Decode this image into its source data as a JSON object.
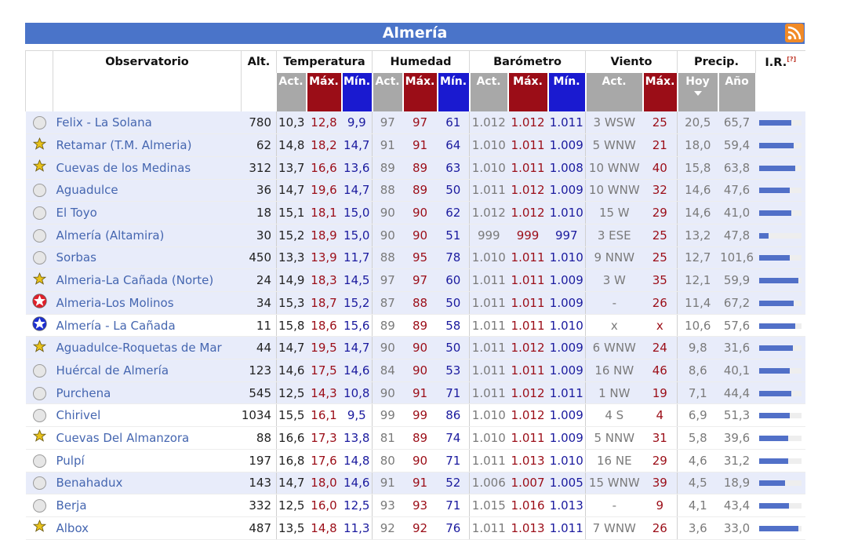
{
  "title": "Almería",
  "columns": {
    "observatorio": "Observatorio",
    "alt": "Alt.",
    "temperatura": "Temperatura",
    "humedad": "Humedad",
    "barometro": "Barómetro",
    "viento": "Viento",
    "precip": "Precip.",
    "ir": "I.R.",
    "ir_note": "[?]",
    "act": "Act.",
    "max": "Máx.",
    "min": "Mín.",
    "hoy": "Hoy",
    "anio": "Año"
  },
  "icons": {
    "rss": "rss-icon",
    "sort": "sort-down-icon",
    "circle": "station-circle-icon",
    "star-yellow": "star-yellow-icon",
    "star-red": "star-red-icon",
    "star-blue": "star-blue-icon"
  },
  "colors": {
    "header": "#4a74c9",
    "act": "#a8a8a8",
    "max": "#9b0d17",
    "min": "#1a1ad0",
    "link": "#4566b0",
    "bar": "#5170c8"
  },
  "rows": [
    {
      "icon": "circle",
      "name": "Felix - La Solana",
      "alt": "780",
      "t_act": "10,3",
      "t_max": "12,8",
      "t_min": "9,9",
      "h_act": "97",
      "h_max": "97",
      "h_min": "61",
      "b_act": "1.012",
      "b_max": "1.012",
      "b_min": "1.011",
      "w_act": "3 WSW",
      "w_max": "25",
      "p_hoy": "20,5",
      "p_anio": "65,7",
      "ir": 0.75,
      "bg": "alt"
    },
    {
      "icon": "star-yellow",
      "name": "Retamar (T.M. Almeria)",
      "alt": "62",
      "t_act": "14,8",
      "t_max": "18,2",
      "t_min": "14,7",
      "h_act": "91",
      "h_max": "91",
      "h_min": "64",
      "b_act": "1.010",
      "b_max": "1.011",
      "b_min": "1.009",
      "w_act": "5 WNW",
      "w_max": "21",
      "p_hoy": "18,0",
      "p_anio": "59,4",
      "ir": 0.82,
      "bg": "alt"
    },
    {
      "icon": "star-yellow",
      "name": "Cuevas de los Medinas",
      "alt": "312",
      "t_act": "13,7",
      "t_max": "16,6",
      "t_min": "13,6",
      "h_act": "89",
      "h_max": "89",
      "h_min": "63",
      "b_act": "1.010",
      "b_max": "1.011",
      "b_min": "1.008",
      "w_act": "10 WNW",
      "w_max": "40",
      "p_hoy": "15,8",
      "p_anio": "63,8",
      "ir": 0.85,
      "bg": "alt"
    },
    {
      "icon": "circle",
      "name": "Aguadulce",
      "alt": "36",
      "t_act": "14,7",
      "t_max": "19,6",
      "t_min": "14,7",
      "h_act": "88",
      "h_max": "89",
      "h_min": "50",
      "b_act": "1.011",
      "b_max": "1.012",
      "b_min": "1.009",
      "w_act": "10 WNW",
      "w_max": "32",
      "p_hoy": "14,6",
      "p_anio": "47,6",
      "ir": 0.72,
      "bg": "alt"
    },
    {
      "icon": "circle",
      "name": "El Toyo",
      "alt": "18",
      "t_act": "15,1",
      "t_max": "18,1",
      "t_min": "15,0",
      "h_act": "90",
      "h_max": "90",
      "h_min": "62",
      "b_act": "1.012",
      "b_max": "1.012",
      "b_min": "1.010",
      "w_act": "15 W",
      "w_max": "29",
      "p_hoy": "14,6",
      "p_anio": "41,0",
      "ir": 0.75,
      "bg": "alt"
    },
    {
      "icon": "circle",
      "name": "Almería (Altamira)",
      "alt": "30",
      "t_act": "15,2",
      "t_max": "18,9",
      "t_min": "15,0",
      "h_act": "90",
      "h_max": "90",
      "h_min": "51",
      "b_act": "999",
      "b_max": "999",
      "b_min": "997",
      "w_act": "3 ESE",
      "w_max": "25",
      "p_hoy": "13,2",
      "p_anio": "47,8",
      "ir": 0.22,
      "bg": "alt"
    },
    {
      "icon": "circle",
      "name": "Sorbas",
      "alt": "450",
      "t_act": "13,3",
      "t_max": "13,9",
      "t_min": "11,7",
      "h_act": "88",
      "h_max": "95",
      "h_min": "78",
      "b_act": "1.010",
      "b_max": "1.011",
      "b_min": "1.010",
      "w_act": "9 NNW",
      "w_max": "25",
      "p_hoy": "12,7",
      "p_anio": "101,6",
      "ir": 0.72,
      "bg": "alt"
    },
    {
      "icon": "star-yellow",
      "name": "Almeria-La Cañada (Norte)",
      "alt": "24",
      "t_act": "14,9",
      "t_max": "18,3",
      "t_min": "14,5",
      "h_act": "97",
      "h_max": "97",
      "h_min": "60",
      "b_act": "1.011",
      "b_max": "1.011",
      "b_min": "1.009",
      "w_act": "3 W",
      "w_max": "35",
      "p_hoy": "12,1",
      "p_anio": "59,9",
      "ir": 0.92,
      "bg": "alt"
    },
    {
      "icon": "star-red",
      "name": "Almeria-Los Molinos",
      "alt": "34",
      "t_act": "15,3",
      "t_max": "18,7",
      "t_min": "15,2",
      "h_act": "87",
      "h_max": "88",
      "h_min": "50",
      "b_act": "1.011",
      "b_max": "1.011",
      "b_min": "1.009",
      "w_act": "-",
      "w_max": "26",
      "p_hoy": "11,4",
      "p_anio": "67,2",
      "ir": 0.82,
      "bg": "alt"
    },
    {
      "icon": "star-blue",
      "name": "Almería - La Cañada",
      "alt": "11",
      "t_act": "15,8",
      "t_max": "18,6",
      "t_min": "15,6",
      "h_act": "89",
      "h_max": "89",
      "h_min": "58",
      "b_act": "1.011",
      "b_max": "1.011",
      "b_min": "1.010",
      "w_act": "x",
      "w_max": "x",
      "p_hoy": "10,6",
      "p_anio": "57,6",
      "ir": 0.85,
      "bg": "wht"
    },
    {
      "icon": "star-yellow",
      "name": "Aguadulce-Roquetas de Mar",
      "alt": "44",
      "t_act": "14,7",
      "t_max": "19,5",
      "t_min": "14,7",
      "h_act": "90",
      "h_max": "90",
      "h_min": "50",
      "b_act": "1.011",
      "b_max": "1.012",
      "b_min": "1.009",
      "w_act": "6 WNW",
      "w_max": "24",
      "p_hoy": "9,8",
      "p_anio": "31,6",
      "ir": 0.8,
      "bg": "alt"
    },
    {
      "icon": "circle",
      "name": "Huércal de Almería",
      "alt": "123",
      "t_act": "14,6",
      "t_max": "17,5",
      "t_min": "14,6",
      "h_act": "84",
      "h_max": "90",
      "h_min": "53",
      "b_act": "1.011",
      "b_max": "1.011",
      "b_min": "1.009",
      "w_act": "16 NW",
      "w_max": "46",
      "p_hoy": "8,6",
      "p_anio": "40,1",
      "ir": 0.72,
      "bg": "alt"
    },
    {
      "icon": "circle",
      "name": "Purchena",
      "alt": "545",
      "t_act": "12,5",
      "t_max": "14,3",
      "t_min": "10,8",
      "h_act": "90",
      "h_max": "91",
      "h_min": "71",
      "b_act": "1.011",
      "b_max": "1.012",
      "b_min": "1.011",
      "w_act": "1 NW",
      "w_max": "19",
      "p_hoy": "7,1",
      "p_anio": "44,4",
      "ir": 0.75,
      "bg": "alt"
    },
    {
      "icon": "circle",
      "name": "Chirivel",
      "alt": "1034",
      "t_act": "15,5",
      "t_max": "16,1",
      "t_min": "9,5",
      "h_act": "99",
      "h_max": "99",
      "h_min": "86",
      "b_act": "1.010",
      "b_max": "1.012",
      "b_min": "1.009",
      "w_act": "4 S",
      "w_max": "4",
      "p_hoy": "6,9",
      "p_anio": "51,3",
      "ir": 0.72,
      "bg": "wht"
    },
    {
      "icon": "star-yellow",
      "name": "Cuevas Del Almanzora",
      "alt": "88",
      "t_act": "16,6",
      "t_max": "17,3",
      "t_min": "13,8",
      "h_act": "81",
      "h_max": "89",
      "h_min": "74",
      "b_act": "1.010",
      "b_max": "1.011",
      "b_min": "1.009",
      "w_act": "5 NNW",
      "w_max": "31",
      "p_hoy": "5,8",
      "p_anio": "39,6",
      "ir": 0.68,
      "bg": "wht"
    },
    {
      "icon": "circle",
      "name": "Pulpí",
      "alt": "197",
      "t_act": "16,8",
      "t_max": "17,6",
      "t_min": "14,8",
      "h_act": "80",
      "h_max": "90",
      "h_min": "71",
      "b_act": "1.011",
      "b_max": "1.013",
      "b_min": "1.010",
      "w_act": "16 NE",
      "w_max": "29",
      "p_hoy": "4,6",
      "p_anio": "31,2",
      "ir": 0.68,
      "bg": "wht"
    },
    {
      "icon": "circle",
      "name": "Benahadux",
      "alt": "143",
      "t_act": "14,7",
      "t_max": "18,0",
      "t_min": "14,6",
      "h_act": "91",
      "h_max": "91",
      "h_min": "52",
      "b_act": "1.006",
      "b_max": "1.007",
      "b_min": "1.005",
      "w_act": "15 WNW",
      "w_max": "39",
      "p_hoy": "4,5",
      "p_anio": "18,9",
      "ir": 0.62,
      "bg": "alt"
    },
    {
      "icon": "circle",
      "name": "Berja",
      "alt": "332",
      "t_act": "12,5",
      "t_max": "16,0",
      "t_min": "12,5",
      "h_act": "93",
      "h_max": "93",
      "h_min": "71",
      "b_act": "1.015",
      "b_max": "1.016",
      "b_min": "1.013",
      "w_act": "-",
      "w_max": "9",
      "p_hoy": "4,1",
      "p_anio": "43,4",
      "ir": 0.7,
      "bg": "wht"
    },
    {
      "icon": "star-yellow",
      "name": "Albox",
      "alt": "487",
      "t_act": "13,5",
      "t_max": "14,8",
      "t_min": "11,3",
      "h_act": "92",
      "h_max": "92",
      "h_min": "76",
      "b_act": "1.011",
      "b_max": "1.013",
      "b_min": "1.011",
      "w_act": "7 WNW",
      "w_max": "26",
      "p_hoy": "3,6",
      "p_anio": "33,0",
      "ir": 0.92,
      "bg": "wht"
    }
  ]
}
